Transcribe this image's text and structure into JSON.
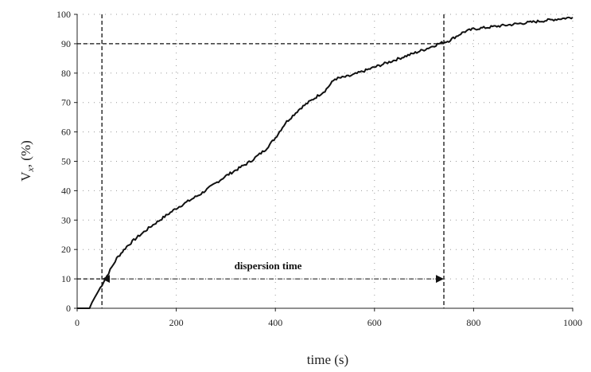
{
  "chart_data": {
    "type": "line",
    "title": "",
    "xlabel": "time (s)",
    "ylabel": "V",
    "ylabel_sub": "x",
    "ylabel_unit": ", (%)",
    "xlim": [
      0,
      1000
    ],
    "ylim": [
      0,
      100
    ],
    "x_ticks": [
      0,
      200,
      400,
      600,
      800,
      1000
    ],
    "y_ticks": [
      0,
      10,
      20,
      30,
      40,
      50,
      60,
      70,
      80,
      90,
      100
    ],
    "grid": "dotted",
    "legend": "none",
    "series": [
      {
        "x": [
          0,
          25,
          30,
          40,
          50,
          60,
          70,
          80,
          100,
          120,
          150,
          200,
          250,
          300,
          350,
          380,
          400,
          420,
          450,
          500,
          520,
          550,
          600,
          650,
          700,
          730,
          750,
          780,
          800,
          850,
          900,
          950,
          1000
        ],
        "y": [
          0,
          0,
          2,
          5,
          8,
          11,
          14,
          17,
          21,
          24,
          28,
          34,
          39,
          45,
          50,
          54,
          58,
          63,
          68,
          74,
          78,
          79,
          82,
          85,
          88,
          90,
          91,
          94,
          95,
          96,
          97,
          98,
          99
        ],
        "color": "#111111"
      }
    ],
    "annotations": {
      "dispersion_label": "dispersion time",
      "start": {
        "x": 50,
        "y": 10
      },
      "end": {
        "x": 740,
        "y": 90
      }
    }
  }
}
